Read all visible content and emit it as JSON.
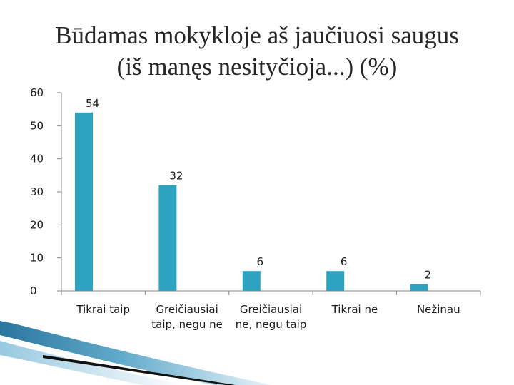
{
  "title_lines": [
    "Būdamas mokykloje aš jaučiuosi saugus",
    "(iš manęs nesityčioja...) (%)"
  ],
  "chart_data": {
    "type": "bar",
    "title": "Būdamas mokykloje aš jaučiuosi saugus (iš manęs nesityčioja...) (%)",
    "categories": [
      [
        "Tikrai taip"
      ],
      [
        "Greičiausiai",
        "taip, negu ne"
      ],
      [
        "Greičiausiai",
        "ne, negu taip"
      ],
      [
        "Tikrai ne"
      ],
      [
        "Nežinau"
      ]
    ],
    "values": [
      54,
      32,
      6,
      6,
      2
    ],
    "data_labels": [
      "54",
      "32",
      "6",
      "6",
      "2"
    ],
    "ylim": [
      0,
      60
    ],
    "yticks": [
      0,
      10,
      20,
      30,
      40,
      50,
      60
    ],
    "ytick_labels": [
      "0",
      "10",
      "20",
      "30",
      "40",
      "50",
      "60"
    ],
    "grid": false,
    "legend": "none",
    "colors": {
      "bar": "#2ea3c1",
      "axis": "#868686",
      "decor_blue": "#1f6f9a"
    }
  }
}
